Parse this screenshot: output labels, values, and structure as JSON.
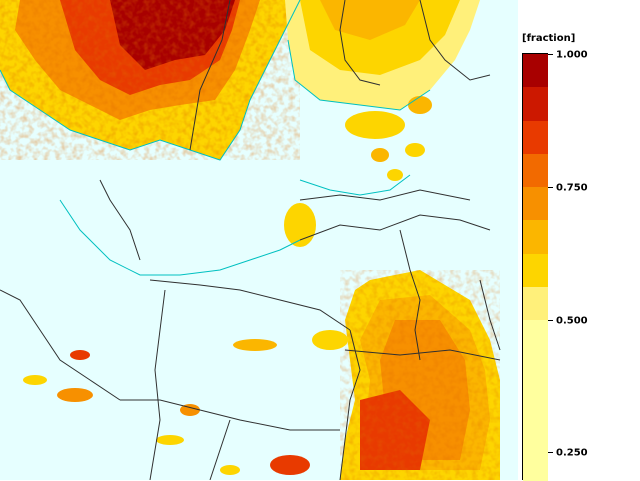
{
  "legend": {
    "unit_label": "[fraction]",
    "ticks": [
      "1.000",
      "0.750",
      "0.500",
      "0.250"
    ],
    "colors": [
      "#a80000",
      "#cc1800",
      "#e83a00",
      "#f26a00",
      "#f79000",
      "#fbb600",
      "#fdd500",
      "#fff07a",
      "#ffff9e"
    ]
  },
  "map": {
    "background_color": "#e6ffff",
    "coast_color": "#00c0c0",
    "border_color": "#303030"
  }
}
